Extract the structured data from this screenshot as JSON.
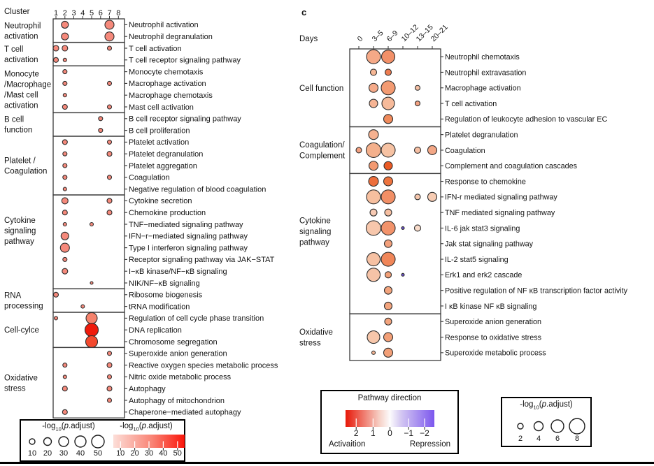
{
  "padj_title": {
    "pre": "-log",
    "sub": "10",
    "open": "(",
    "p": "p",
    "rest": ".adjust)"
  },
  "chart_data": [
    {
      "type": "dotplot",
      "title": "Cluster",
      "columns": [
        "1",
        "2",
        "3",
        "4",
        "5",
        "6",
        "7",
        "8"
      ],
      "dot_color": "#f5897b",
      "size_meaning": "-log10(p.adjust)",
      "color_meaning": "-log10(p.adjust)",
      "groups": [
        {
          "label_lines": [
            "Neutrophil",
            "activation"
          ],
          "rows": [
            {
              "label": "Neutrophil activation",
              "dots": [
                [
                  1,
                  5
                ],
                [
                  6,
                  6.5
                ]
              ]
            },
            {
              "label": "Neutrophil degranulation",
              "dots": [
                [
                  1,
                  5
                ],
                [
                  6,
                  6.5
                ]
              ]
            }
          ]
        },
        {
          "label_lines": [
            "T cell",
            "activation"
          ],
          "rows": [
            {
              "label": "T cell activation",
              "dots": [
                [
                  0,
                  4
                ],
                [
                  1,
                  4
                ],
                [
                  6,
                  3
                ]
              ]
            },
            {
              "label": "T cell receptor signaling pathway",
              "dots": [
                [
                  0,
                  3.5
                ],
                [
                  1,
                  2.5
                ]
              ]
            }
          ]
        },
        {
          "label_lines": [
            "Monocyte",
            "/Macrophage",
            "/Mast cell",
            "activation"
          ],
          "rows": [
            {
              "label": "Monocyte chemotaxis",
              "dots": [
                [
                  1,
                  3
                ]
              ]
            },
            {
              "label": "Macrophage activation",
              "dots": [
                [
                  1,
                  3
                ],
                [
                  6,
                  3
                ]
              ]
            },
            {
              "label": "Macrophage chemotaxis",
              "dots": [
                [
                  1,
                  2.5
                ]
              ]
            },
            {
              "label": "Mast cell activation",
              "dots": [
                [
                  1,
                  3.5
                ],
                [
                  6,
                  3
                ]
              ]
            }
          ]
        },
        {
          "label_lines": [
            "B cell",
            "function"
          ],
          "rows": [
            {
              "label": "B cell receptor signaling pathway",
              "dots": [
                [
                  5,
                  3
                ]
              ]
            },
            {
              "label": "B cell proliferation",
              "dots": [
                [
                  5,
                  3
                ]
              ]
            }
          ]
        },
        {
          "label_lines": [
            "Platelet /",
            "Coagulation"
          ],
          "rows": [
            {
              "label": "Platelet activation",
              "dots": [
                [
                  1,
                  3.5
                ],
                [
                  6,
                  3
                ]
              ]
            },
            {
              "label": "Platelet degranulation",
              "dots": [
                [
                  1,
                  3
                ],
                [
                  6,
                  3.5
                ]
              ]
            },
            {
              "label": "Platelet aggregation",
              "dots": [
                [
                  1,
                  3
                ]
              ]
            },
            {
              "label": "Coagulation",
              "dots": [
                [
                  1,
                  3
                ],
                [
                  6,
                  3
                ]
              ]
            },
            {
              "label": "Negative regulation of blood coagulation",
              "dots": [
                [
                  1,
                  2.5
                ]
              ]
            }
          ]
        },
        {
          "label_lines": [
            "Cytokine",
            "signaling",
            "pathway"
          ],
          "rows": [
            {
              "label": "Cytokine secretion",
              "dots": [
                [
                  1,
                  4.5
                ],
                [
                  6,
                  3.5
                ]
              ]
            },
            {
              "label": "Chemokine production",
              "dots": [
                [
                  1,
                  3.5
                ],
                [
                  6,
                  3.5
                ]
              ]
            },
            {
              "label": "TNF−mediated signaling pathway",
              "dots": [
                [
                  1,
                  2.5
                ],
                [
                  4,
                  2.5
                ]
              ]
            },
            {
              "label": "IFN−r−mediated signaling pathway",
              "dots": [
                [
                  1,
                  5.5
                ]
              ]
            },
            {
              "label": "Type I interferon signaling pathway",
              "dots": [
                [
                  1,
                  6.5
                ]
              ]
            },
            {
              "label": "Receptor signaling pathway via JAK−STAT",
              "dots": [
                [
                  1,
                  3
                ]
              ]
            },
            {
              "label": "I−κB kinase/NF−κB signaling",
              "dots": [
                [
                  1,
                  4
                ]
              ]
            },
            {
              "label": "NIK/NF−κB signaling",
              "dots": [
                [
                  4,
                  2
                ]
              ]
            }
          ]
        },
        {
          "label_lines": [
            "RNA",
            "processing"
          ],
          "rows": [
            {
              "label": "Ribosome biogenesis",
              "dots": [
                [
                  0,
                  3.5
                ]
              ]
            },
            {
              "label": "tRNA modification",
              "dots": [
                [
                  3,
                  2.5
                ]
              ]
            }
          ]
        },
        {
          "label_lines": [
            "Cell-cylce"
          ],
          "rows": [
            {
              "label": "Regulation of cell cycle phase transition",
              "dots": [
                [
                  0,
                  2.5
                ],
                [
                  4,
                  8,
                  "#f5826c"
                ]
              ]
            },
            {
              "label": "DNA replication",
              "dots": [
                [
                  4,
                  9.5,
                  "#ef1a0b"
                ]
              ]
            },
            {
              "label": "Chromosome segregation",
              "dots": [
                [
                  4,
                  8.5,
                  "#f3492d"
                ]
              ]
            }
          ]
        },
        {
          "label_lines": [
            "Oxidative",
            "stress"
          ],
          "rows": [
            {
              "label": "Superoxide anion generation",
              "dots": [
                [
                  6,
                  3
                ]
              ]
            },
            {
              "label": "Reactive oxygen species metabolic process",
              "dots": [
                [
                  1,
                  3
                ],
                [
                  6,
                  3.5
                ]
              ]
            },
            {
              "label": "Nitric oxide metabolic process",
              "dots": [
                [
                  1,
                  2.5
                ],
                [
                  6,
                  3
                ]
              ]
            },
            {
              "label": "Autophagy",
              "dots": [
                [
                  1,
                  3.5
                ],
                [
                  6,
                  3.5
                ]
              ]
            },
            {
              "label": "Autophagy of mitochondrion",
              "dots": [
                [
                  6,
                  3
                ]
              ]
            },
            {
              "label": "Chaperone−mediated autophagy",
              "dots": [
                [
                  1,
                  3.5
                ]
              ]
            }
          ]
        }
      ]
    },
    {
      "type": "dotplot",
      "tag": "c",
      "title": "Days",
      "columns": [
        "0",
        "3–5",
        "6–9",
        "10–12",
        "13–15",
        "20–21"
      ],
      "dot_color": "#f2a181",
      "size_meaning": "-log10(p.adjust)",
      "color_meaning": "Pathway direction (red activation, blue repression)",
      "groups": [
        {
          "label_lines": [
            "Cell function"
          ],
          "rows": [
            {
              "label": "Neutrophil chemotaxis",
              "dots": [
                [
                  1,
                  10,
                  "#f5a987"
                ],
                [
                  2,
                  9.5,
                  "#f29068"
                ]
              ]
            },
            {
              "label": "Neutrophil extravasation",
              "dots": [
                [
                  1,
                  4.5,
                  "#f6b795"
                ],
                [
                  2,
                  4.5,
                  "#ee7c50"
                ]
              ]
            },
            {
              "label": "Macrophage activation",
              "dots": [
                [
                  1,
                  6.5,
                  "#f5aa89"
                ],
                [
                  2,
                  10,
                  "#f39b72"
                ],
                [
                  4,
                  3.5,
                  "#f5c0a4"
                ]
              ]
            },
            {
              "label": "T cell activation",
              "dots": [
                [
                  1,
                  6,
                  "#f6b494"
                ],
                [
                  2,
                  9,
                  "#f6ba9a"
                ],
                [
                  4,
                  3.5,
                  "#f2a181"
                ]
              ]
            },
            {
              "label": "Regulation of leukocyte adhesion to vascular EC",
              "dots": [
                [
                  2,
                  6.5,
                  "#f08b5c"
                ]
              ]
            }
          ]
        },
        {
          "label_lines": [
            "Coagulation/",
            "Complement"
          ],
          "rows": [
            {
              "label": "Platelet degranulation",
              "dots": [
                [
                  1,
                  7,
                  "#f5b190"
                ]
              ]
            },
            {
              "label": "Coagulation",
              "dots": [
                [
                  0,
                  4,
                  "#f3a080"
                ],
                [
                  1,
                  10.5,
                  "#f4b08c"
                ],
                [
                  2,
                  10,
                  "#f6c2a3"
                ],
                [
                  4,
                  4.5,
                  "#f6bfa3"
                ],
                [
                  5,
                  6.5,
                  "#f3a786"
                ]
              ]
            },
            {
              "label": "Complement and coagulation cascades",
              "dots": [
                [
                  1,
                  6.5,
                  "#f29971"
                ],
                [
                  2,
                  6,
                  "#ea5a24"
                ]
              ]
            }
          ]
        },
        {
          "label_lines": [
            "Cytokine",
            "signaling",
            "pathway"
          ],
          "rows": [
            {
              "label": "Response to chemokine",
              "dots": [
                [
                  1,
                  7,
                  "#ed6e3c"
                ],
                [
                  2,
                  6.5,
                  "#ee743e"
                ]
              ]
            },
            {
              "label": "IFN-r mediated signaling pathway",
              "dots": [
                [
                  1,
                  10,
                  "#f6bf9f"
                ],
                [
                  2,
                  10,
                  "#f18f66"
                ],
                [
                  4,
                  4,
                  "#f6c7ad"
                ],
                [
                  5,
                  6.5,
                  "#f7ccb3"
                ]
              ]
            },
            {
              "label": "TNF mediated signaling pathway",
              "dots": [
                [
                  1,
                  5,
                  "#f7cab3"
                ],
                [
                  2,
                  5,
                  "#f6bfa1"
                ]
              ]
            },
            {
              "label": "IL-6 jak stat3 signaling",
              "dots": [
                [
                  1,
                  10.5,
                  "#f7c7ac"
                ],
                [
                  2,
                  10,
                  "#f2936b"
                ],
                [
                  3,
                  2,
                  "#6a50c8"
                ],
                [
                  4,
                  4.5,
                  "#f9dccb"
                ]
              ]
            },
            {
              "label": "Jak stat signaling pathway",
              "dots": [
                [
                  2,
                  5.5,
                  "#f3a07b"
                ]
              ]
            },
            {
              "label": "IL-2 stat5 signaling",
              "dots": [
                [
                  1,
                  9.5,
                  "#f6c1a3"
                ],
                [
                  2,
                  10,
                  "#f08659"
                ]
              ]
            },
            {
              "label": "Erk1 and erk2 cascade",
              "dots": [
                [
                  1,
                  9.5,
                  "#f6c3a7"
                ],
                [
                  2,
                  4.5,
                  "#f2a077"
                ],
                [
                  3,
                  2,
                  "#6a50c8"
                ]
              ]
            },
            {
              "label": "Positive regulation of NF κB transcription factor activity",
              "dots": [
                [
                  2,
                  5.5,
                  "#f3a47d"
                ]
              ]
            },
            {
              "label": "I κB kinase NF κB signaling",
              "dots": [
                [
                  2,
                  5.5,
                  "#f3a47d"
                ]
              ]
            }
          ]
        },
        {
          "label_lines": [
            "Oxidative",
            "stress"
          ],
          "rows": [
            {
              "label": "Superoxide anion generation",
              "dots": [
                [
                  2,
                  5,
                  "#f3a47d"
                ]
              ]
            },
            {
              "label": "Response to oxidative stress",
              "dots": [
                [
                  1,
                  9,
                  "#f7c7ab"
                ],
                [
                  2,
                  6.5,
                  "#f29f77"
                ]
              ]
            },
            {
              "label": "Superoxide metabolic process",
              "dots": [
                [
                  1,
                  2.5,
                  "#f5b593"
                ],
                [
                  2,
                  6.5,
                  "#f29f77"
                ]
              ]
            }
          ]
        }
      ]
    }
  ],
  "legends": {
    "size_left": {
      "values": [
        "10",
        "20",
        "30",
        "40",
        "50"
      ],
      "radii": [
        4,
        5.5,
        7,
        8,
        9
      ]
    },
    "color_left": {
      "values": [
        "10",
        "20",
        "30",
        "40",
        "50"
      ],
      "stops": [
        [
          "0%",
          "#fcded8"
        ],
        [
          "55%",
          "#f98273"
        ],
        [
          "100%",
          "#fa150a"
        ]
      ]
    },
    "direction": {
      "title": "Pathway direction",
      "tick_labels": [
        "2",
        "1",
        "0",
        "−1",
        "−2"
      ],
      "left_label": "Activaition",
      "right_label": "Repression",
      "stops": [
        [
          "0%",
          "#e71809"
        ],
        [
          "38%",
          "#f6cfc4"
        ],
        [
          "50%",
          "#fcfbfc"
        ],
        [
          "62%",
          "#d5c9f2"
        ],
        [
          "100%",
          "#7c57ee"
        ]
      ]
    },
    "size_right": {
      "values": [
        "2",
        "4",
        "6",
        "8"
      ],
      "radii": [
        4,
        6.5,
        9,
        11
      ]
    }
  },
  "colors": {
    "dot_default": "#f5897b",
    "dot_red": "#ef1a0b",
    "dot_orange_red": "#f3492d",
    "dot_purple": "#6a50c8",
    "box_stroke": "#3a3a3a",
    "text": "#141414"
  }
}
